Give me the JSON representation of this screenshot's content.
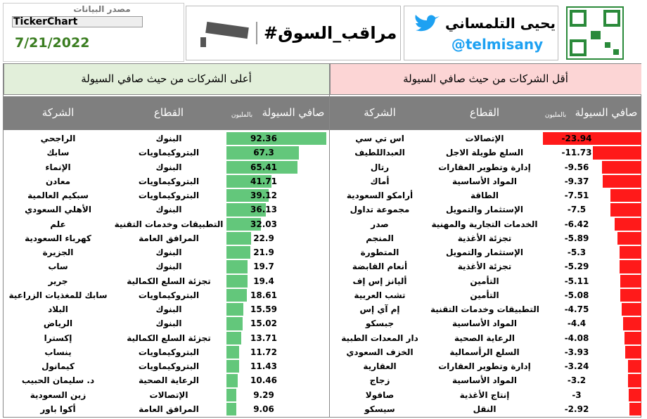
{
  "header": {
    "source_label": "مصدر البيانات",
    "provider": "TickerChart",
    "date": "7/21/2022",
    "hashtag": "#مراقب_السوق",
    "author": "يحيى التلمساني",
    "handle": "@telmisany"
  },
  "top": {
    "title": "أعلى الشركات من حيث صافي السيولة",
    "columns": {
      "company": "الشركة",
      "sector": "القطاع",
      "value": "صافي السيولة",
      "unit": "بالمليون"
    },
    "rows": [
      [
        "الراجحي",
        "البنوك",
        92.36
      ],
      [
        "سابك",
        "البتروكيماويات",
        67.3
      ],
      [
        "الإنماء",
        "البنوك",
        65.41
      ],
      [
        "معادن",
        "البتروكيماويات",
        41.71
      ],
      [
        "سبكيم العالمية",
        "البتروكيماويات",
        39.12
      ],
      [
        "الأهلي السعودي",
        "البنوك",
        36.13
      ],
      [
        "علم",
        "التطبيقات وخدمات التقنية",
        32.03
      ],
      [
        "كهرباء السعودية",
        "المرافق العامة",
        22.9
      ],
      [
        "الجزيرة",
        "البنوك",
        21.9
      ],
      [
        "ساب",
        "البنوك",
        19.7
      ],
      [
        "جرير",
        "تجزئة السلع الكمالية",
        19.4
      ],
      [
        "سابك للمغذيات الزراعية",
        "البتروكيماويات",
        18.61
      ],
      [
        "البلاد",
        "البنوك",
        15.59
      ],
      [
        "الرياض",
        "البنوك",
        15.02
      ],
      [
        "إكسترا",
        "تجزئة السلع الكمالية",
        13.71
      ],
      [
        "ينساب",
        "البتروكيماويات",
        11.72
      ],
      [
        "كيمانول",
        "البتروكيماويات",
        11.43
      ],
      [
        "د. سليمان الحبيب",
        "الرعاية الصحية",
        10.46
      ],
      [
        "زين السعودية",
        "الإتصالات",
        9.29
      ],
      [
        "أكوا باور",
        "المرافق العامة",
        9.06
      ]
    ]
  },
  "bottom": {
    "title": "أقل الشركات من حيث صافي السيولة",
    "columns": {
      "company": "الشركة",
      "sector": "القطاع",
      "value": "صافي السيولة",
      "unit": "بالمليون"
    },
    "rows": [
      [
        "اس تي سي",
        "الإتصالات",
        -23.94
      ],
      [
        "العبداللطيف",
        "السلع طويلة الاجل",
        -11.73
      ],
      [
        "رتال",
        "إدارة وتطوير العقارات",
        -9.56
      ],
      [
        "أماك",
        "المواد الأساسية",
        -9.37
      ],
      [
        "أرامكو السعودية",
        "الطاقة",
        -7.51
      ],
      [
        "مجموعة تداول",
        "الإستثمار والتمويل",
        -7.5
      ],
      [
        "صدر",
        "الخدمات التجارية والمهنية",
        -6.42
      ],
      [
        "المنجم",
        "تجزئة الأغذية",
        -5.89
      ],
      [
        "المتطورة",
        "الإستثمار والتمويل",
        -5.3
      ],
      [
        "أنعام القابضة",
        "تجزئة الأغذية",
        -5.29
      ],
      [
        "أليانز إس إف",
        "التأمين",
        -5.11
      ],
      [
        "تشب العربية",
        "التأمين",
        -5.08
      ],
      [
        "إم آي إس",
        "التطبيقات وخدمات التقنية",
        -4.75
      ],
      [
        "جبسكو",
        "المواد الأساسية",
        -4.4
      ],
      [
        "دار المعدات الطبية",
        "الرعاية الصحية",
        -4.08
      ],
      [
        "الخزف السعودي",
        "السلع الرأسمالية",
        -3.93
      ],
      [
        "العقارية",
        "إدارة وتطوير العقارات",
        -3.24
      ],
      [
        "زجاج",
        "المواد الأساسية",
        -3.2
      ],
      [
        "صافولا",
        "إنتاج الأغذية",
        -3
      ],
      [
        "سيسكو",
        "النقل",
        -2.92
      ]
    ]
  }
}
